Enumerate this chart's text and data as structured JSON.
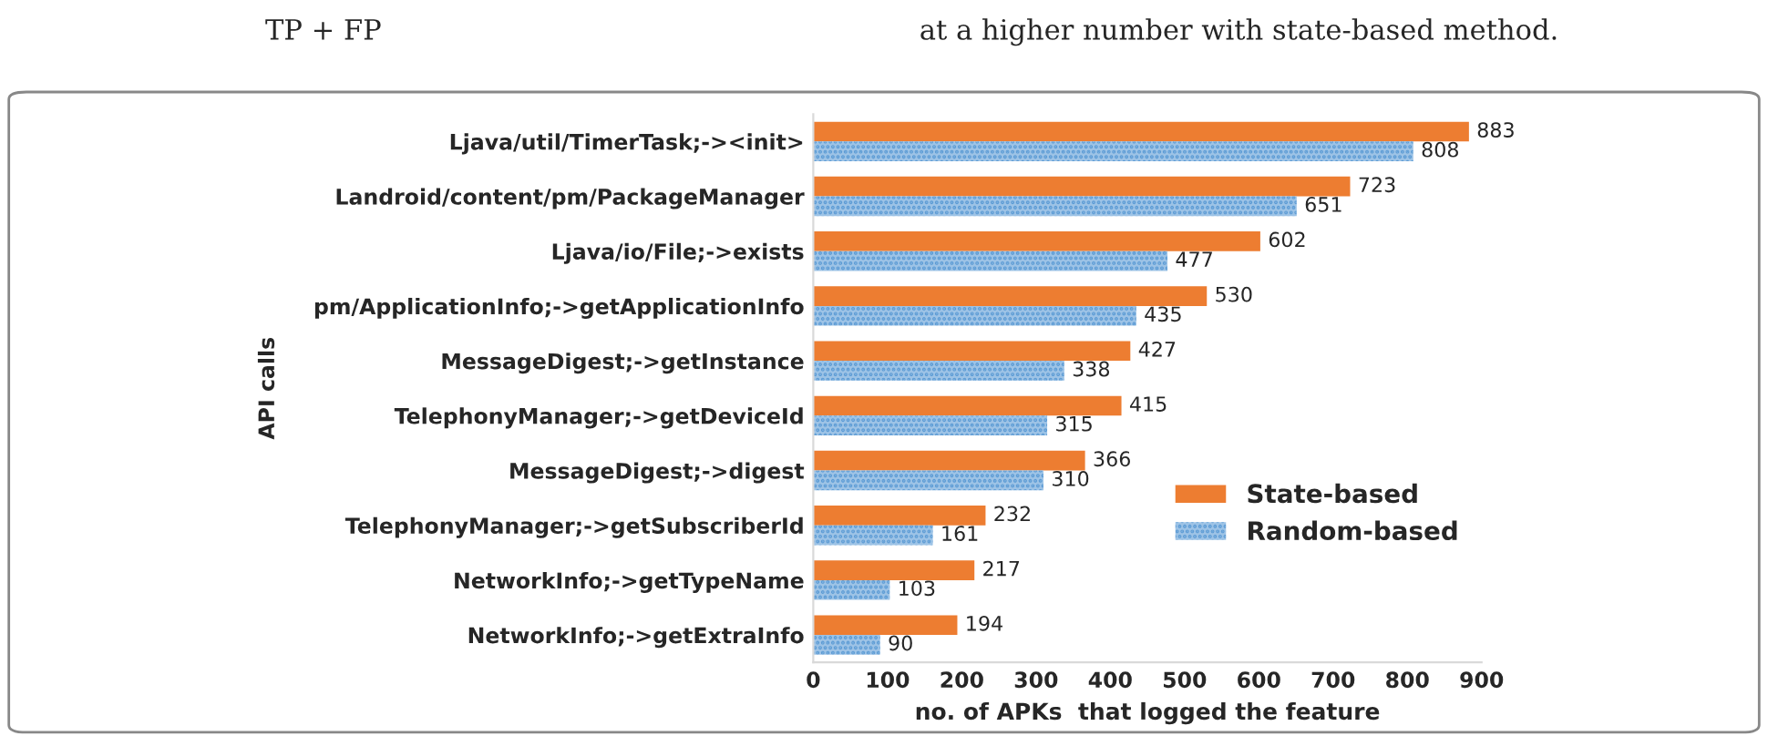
{
  "chart_data": {
    "type": "bar",
    "orientation": "horizontal",
    "ylabel": "API calls",
    "xlabel": "no. of APKs  that logged the feature",
    "annotations": [
      "TP + FP",
      "at a higher number with state-based method."
    ],
    "categories": [
      "Ljava/util/TimerTask;-><init>",
      "Landroid/content/pm/PackageManager",
      "Ljava/io/File;->exists",
      "pm/ApplicationInfo;->getApplicationInfo",
      "MessageDigest;->getInstance",
      "TelephonyManager;->getDeviceId",
      "MessageDigest;->digest",
      "TelephonyManager;->getSubscriberId",
      "NetworkInfo;->getTypeName",
      "NetworkInfo;->getExtraInfo"
    ],
    "series": [
      {
        "name": "State-based",
        "color": "#ed7d31",
        "values": [
          883,
          723,
          602,
          530,
          427,
          415,
          366,
          232,
          217,
          194
        ]
      },
      {
        "name": "Random-based",
        "color": "#9dc3e6",
        "values": [
          808,
          651,
          477,
          435,
          338,
          315,
          310,
          161,
          103,
          90
        ]
      }
    ],
    "xlim": [
      0,
      900
    ],
    "xticks": [
      0,
      100,
      200,
      300,
      400,
      500,
      600,
      700,
      800,
      900
    ],
    "data_labels": true,
    "grid": false,
    "legend": "right"
  }
}
